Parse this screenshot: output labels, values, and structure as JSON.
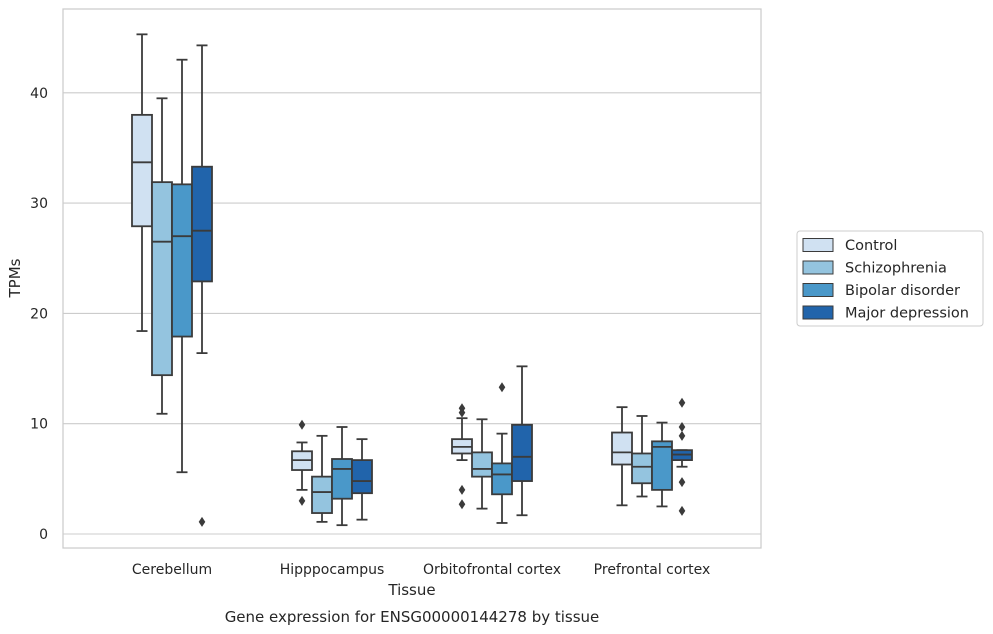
{
  "chart_data": {
    "type": "box",
    "title": "",
    "caption": "Gene expression for ENSG00000144278 by tissue",
    "xlabel": "Tissue",
    "ylabel": "TPMs",
    "ylim": [
      -1.3,
      47.6
    ],
    "yticks": [
      0,
      10,
      20,
      30,
      40
    ],
    "grid": "horizontal",
    "legend_position": "right, outside plot",
    "categories": [
      "Cerebellum",
      "Hipppocampus",
      "Orbitofrontal cortex",
      "Prefrontal cortex"
    ],
    "series": [
      {
        "name": "Control",
        "color": "#d0e1f2",
        "boxes": [
          {
            "whisker_low": 18.4,
            "q1": 27.9,
            "median": 33.7,
            "q3": 38.0,
            "whisker_high": 45.3,
            "outliers": []
          },
          {
            "whisker_low": 4.0,
            "q1": 5.8,
            "median": 6.7,
            "q3": 7.5,
            "whisker_high": 8.3,
            "outliers": [
              9.9,
              3.0
            ]
          },
          {
            "whisker_low": 6.7,
            "q1": 7.3,
            "median": 7.9,
            "q3": 8.6,
            "whisker_high": 10.5,
            "outliers": [
              11.4,
              11.0,
              4.0,
              2.7
            ]
          },
          {
            "whisker_low": 2.6,
            "q1": 6.3,
            "median": 7.4,
            "q3": 9.2,
            "whisker_high": 11.5,
            "outliers": []
          }
        ]
      },
      {
        "name": "Schizophrenia",
        "color": "#94c4df",
        "boxes": [
          {
            "whisker_low": 10.9,
            "q1": 14.4,
            "median": 26.5,
            "q3": 31.9,
            "whisker_high": 39.5,
            "outliers": []
          },
          {
            "whisker_low": 1.1,
            "q1": 1.9,
            "median": 3.8,
            "q3": 5.2,
            "whisker_high": 8.9,
            "outliers": []
          },
          {
            "whisker_low": 2.3,
            "q1": 5.2,
            "median": 5.9,
            "q3": 7.4,
            "whisker_high": 10.4,
            "outliers": []
          },
          {
            "whisker_low": 3.4,
            "q1": 4.6,
            "median": 6.1,
            "q3": 7.3,
            "whisker_high": 10.7,
            "outliers": []
          }
        ]
      },
      {
        "name": "Bipolar disorder",
        "color": "#4a98c9",
        "boxes": [
          {
            "whisker_low": 5.6,
            "q1": 17.9,
            "median": 27.0,
            "q3": 31.7,
            "whisker_high": 43.0,
            "outliers": []
          },
          {
            "whisker_low": 0.8,
            "q1": 3.2,
            "median": 5.9,
            "q3": 6.8,
            "whisker_high": 9.7,
            "outliers": []
          },
          {
            "whisker_low": 1.0,
            "q1": 3.6,
            "median": 5.4,
            "q3": 6.4,
            "whisker_high": 9.1,
            "outliers": [
              13.3
            ]
          },
          {
            "whisker_low": 2.5,
            "q1": 4.0,
            "median": 7.9,
            "q3": 8.4,
            "whisker_high": 10.1,
            "outliers": []
          }
        ]
      },
      {
        "name": "Major depression",
        "color": "#2164ab",
        "boxes": [
          {
            "whisker_low": 16.4,
            "q1": 22.9,
            "median": 27.5,
            "q3": 33.3,
            "whisker_high": 44.3,
            "outliers": [
              1.1
            ]
          },
          {
            "whisker_low": 1.3,
            "q1": 3.7,
            "median": 4.8,
            "q3": 6.7,
            "whisker_high": 8.6,
            "outliers": []
          },
          {
            "whisker_low": 1.7,
            "q1": 4.8,
            "median": 7.0,
            "q3": 9.9,
            "whisker_high": 15.2,
            "outliers": []
          },
          {
            "whisker_low": 6.1,
            "q1": 6.7,
            "median": 7.2,
            "q3": 7.6,
            "whisker_high": 7.6,
            "outliers": [
              11.9,
              9.7,
              8.9,
              4.7,
              2.1
            ]
          }
        ]
      }
    ]
  }
}
